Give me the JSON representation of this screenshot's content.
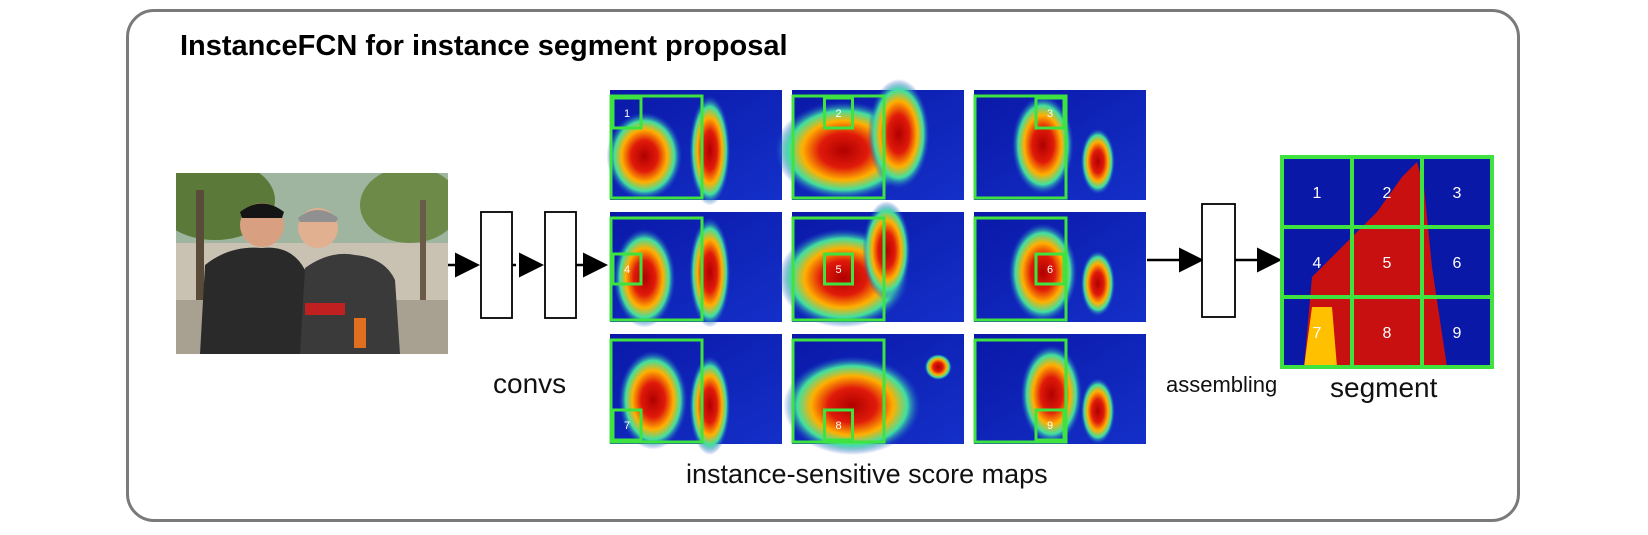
{
  "title": "InstanceFCN for instance segment proposal",
  "labels": {
    "convs": "convs",
    "score_maps": "instance-sensitive score maps",
    "assembling": "assembling",
    "segment": "segment"
  },
  "score_map_indices": [
    "1",
    "2",
    "3",
    "4",
    "5",
    "6",
    "7",
    "8",
    "9"
  ],
  "segment_cells": [
    "1",
    "2",
    "3",
    "4",
    "5",
    "6",
    "7",
    "8",
    "9"
  ],
  "colors": {
    "frame": "#7a7a7a",
    "box_green": "#3fe33f",
    "heat_low": "#1020b0",
    "heat_high": "#c01010"
  }
}
